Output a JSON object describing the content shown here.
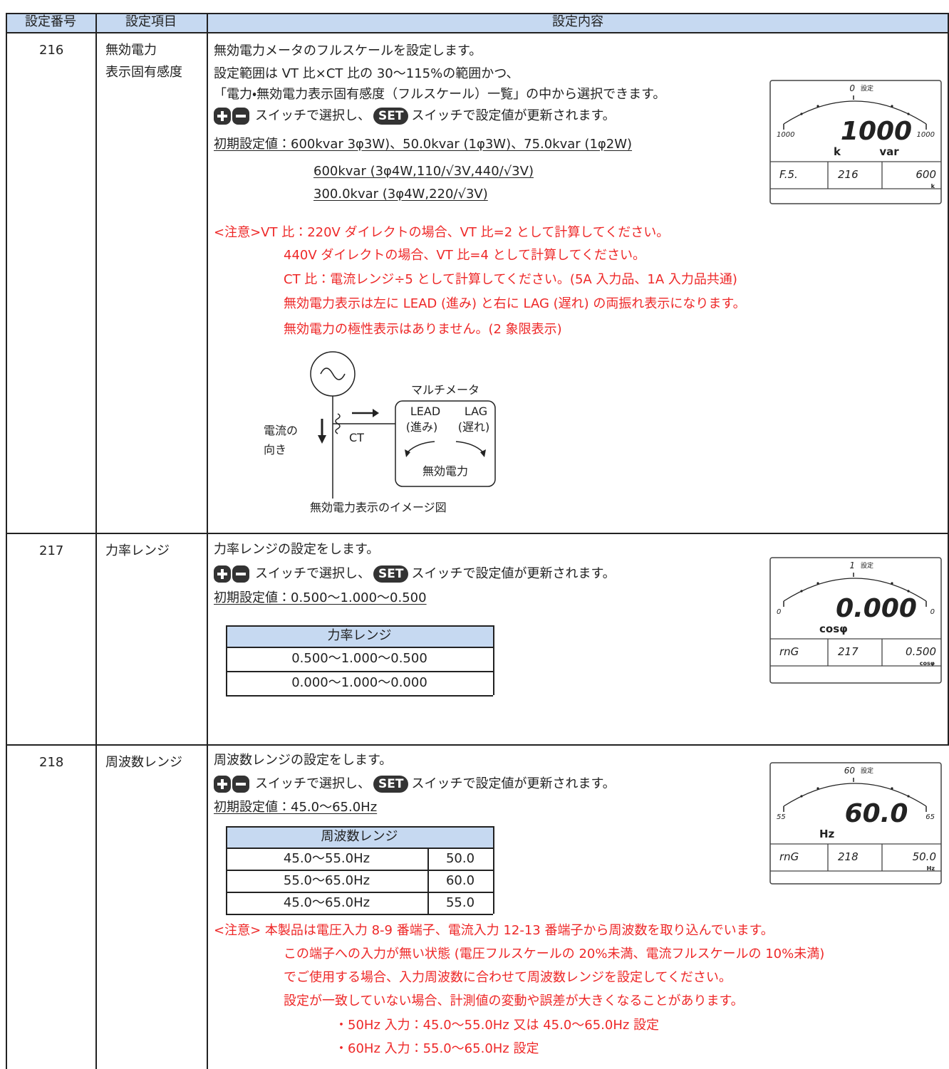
{
  "table": {
    "header": [
      "設定番号",
      "設定項目",
      "設定内容"
    ],
    "rows": [
      {
        "number": "216",
        "item": [
          "無効電力",
          "表示固有感度"
        ],
        "description": [
          "無効電力メータのフルスケールを設定します。",
          "設定範囲は VT 比×CT 比の 30～115%の範囲かつ、",
          "「電力・無効電力表示固有感度（フルスケール）一覧」の中から選択できます。"
        ],
        "switch": {
          "select": "スイッチで選択し、",
          "set": "SET",
          "update": "スイッチで設定値が更新されます。"
        },
        "initial": [
          "初期設定値：600kvar 3φ3W)、50.0kvar (1φ3W)、75.0kvar (1φ2W)",
          "600kvar (3φ4W,110/√3V,440/√3V)",
          "300.0kvar (3φ4W,220/√3V)"
        ],
        "notes": [
          "<注意>VT 比：220V ダイレクトの場合、VT 比=2 として計算してください。",
          "440V ダイレクトの場合、VT 比=4 として計算してください。",
          "CT 比：電流レンジ÷5 として計算してください。(5A 入力品、1A 入力品共通)",
          "無効電力表示は左に LEAD (進み) と右に LAG (遅れ) の両振れ表示になります。",
          "無効電力の極性表示はありません。(2 象限表示)"
        ],
        "diagram": {
          "current_direction": [
            "電流の",
            "向き"
          ],
          "ct": "CT",
          "meter_title": "マルチメータ",
          "lead": [
            "LEAD",
            "(進み)"
          ],
          "lag": [
            "LAG",
            "(遅れ)"
          ],
          "quantity": "無効電力",
          "caption": "無効電力表示のイメージ図"
        },
        "meter": {
          "top": "0",
          "setting": "設定",
          "left": "1000",
          "right": "1000",
          "value": "1000",
          "units": [
            "k",
            "var"
          ],
          "bottom": [
            "F.5.",
            "216",
            "600"
          ],
          "bottom_unit": "k"
        }
      },
      {
        "number": "217",
        "item": [
          "力率レンジ"
        ],
        "description": [
          "力率レンジの設定をします。"
        ],
        "switch": {
          "select": "スイッチで選択し、",
          "set": "SET",
          "update": "スイッチで設定値が更新されます。"
        },
        "initial": [
          "初期設定値：0.500～1.000～0.500"
        ],
        "table": {
          "header": "力率レンジ",
          "rows": [
            [
              "0.500～1.000～0.500"
            ],
            [
              "0.000～1.000～0.000"
            ]
          ]
        },
        "meter": {
          "top": "1",
          "setting": "設定",
          "left": "0",
          "right": "0",
          "value": "0.000",
          "units": [
            "cosφ"
          ],
          "bottom": [
            "rnG",
            "217",
            "0.500"
          ],
          "bottom_unit": "cosφ"
        }
      },
      {
        "number": "218",
        "item": [
          "周波数レンジ"
        ],
        "description": [
          "周波数レンジの設定をします。"
        ],
        "switch": {
          "select": "スイッチで選択し、",
          "set": "SET",
          "update": "スイッチで設定値が更新されます。"
        },
        "initial": [
          "初期設定値：45.0～65.0Hz"
        ],
        "table": {
          "header": "周波数レンジ",
          "rows": [
            [
              "45.0～55.0Hz",
              "50.0"
            ],
            [
              "55.0～65.0Hz",
              "60.0"
            ],
            [
              "45.0～65.0Hz",
              "55.0"
            ]
          ]
        },
        "notes": [
          "<注意> 本製品は電圧入力 8-9 番端子、電流入力 12-13 番端子から周波数を取り込んでいます。",
          "この端子への入力が無い状態 (電圧フルスケールの 20%未満、電流フルスケールの 10%未満)",
          "でご使用する場合、入力周波数に合わせて周波数レンジを設定してください。",
          "設定が一致していない場合、計測値の変動や誤差が大きくなることがあります。",
          "・50Hz 入力：45.0～55.0Hz 又は 45.0～65.0Hz 設定",
          "・60Hz 入力：55.0～65.0Hz 設定"
        ],
        "meter": {
          "top": "60",
          "setting": "設定",
          "left": "55",
          "right": "65",
          "value": "60.0",
          "units": [
            "Hz"
          ],
          "bottom": [
            "rnG",
            "218",
            "50.0"
          ],
          "bottom_unit": "Hz"
        }
      }
    ]
  }
}
